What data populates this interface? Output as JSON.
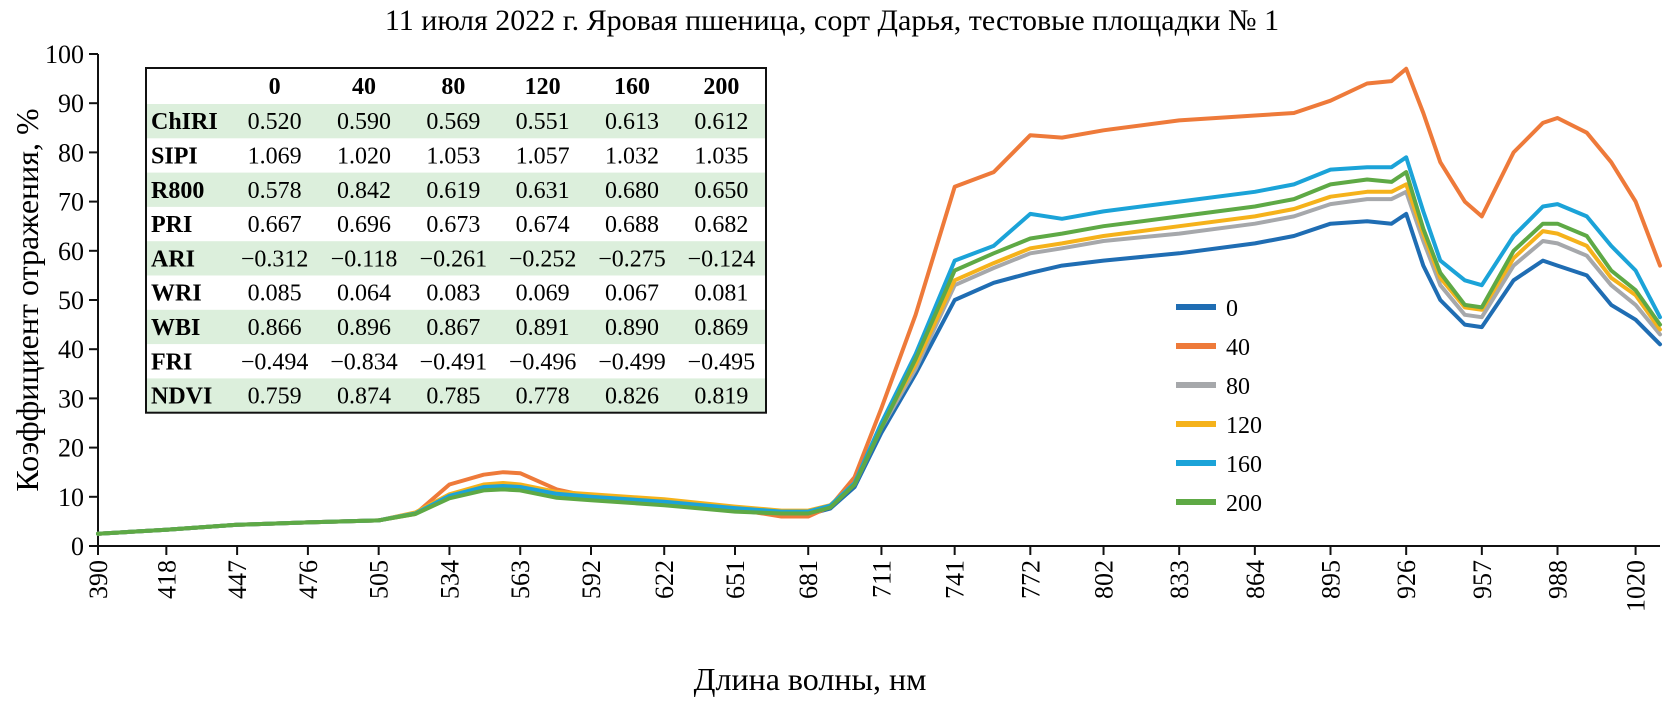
{
  "chart_data": {
    "type": "line",
    "title": "11 июля 2022 г. Яровая пшеница, сорт Дарья, тестовые площадки № 1",
    "xlabel": "Длина волны, нм",
    "ylabel": "Коэффициент отражения, %",
    "xlim": [
      390,
      1030
    ],
    "ylim": [
      0,
      100
    ],
    "yticks": [
      0,
      10,
      20,
      30,
      40,
      50,
      60,
      70,
      80,
      90,
      100
    ],
    "xticks": [
      390,
      418,
      447,
      476,
      505,
      534,
      563,
      592,
      622,
      651,
      681,
      711,
      741,
      772,
      802,
      833,
      864,
      895,
      926,
      957,
      988,
      1020
    ],
    "grid": false,
    "legend_position": "right",
    "x": [
      390,
      418,
      447,
      476,
      505,
      520,
      534,
      548,
      556,
      563,
      578,
      592,
      622,
      651,
      670,
      681,
      690,
      700,
      711,
      725,
      741,
      757,
      772,
      785,
      802,
      833,
      864,
      880,
      895,
      910,
      920,
      926,
      933,
      940,
      950,
      957,
      970,
      982,
      988,
      1000,
      1010,
      1020,
      1030
    ],
    "series": [
      {
        "name": "0",
        "color": "#1f6db3",
        "values": [
          2.5,
          3.3,
          4.3,
          4.8,
          5.2,
          6.7,
          9.8,
          11.4,
          11.6,
          11.4,
          10.0,
          9.5,
          8.4,
          7.2,
          6.4,
          6.4,
          7.6,
          12.0,
          23.0,
          35.0,
          50.0,
          53.5,
          55.5,
          57.0,
          58.0,
          59.5,
          61.5,
          63.0,
          65.5,
          66.0,
          65.5,
          67.5,
          57.0,
          50.0,
          45.0,
          44.5,
          54.0,
          58.0,
          57.0,
          55.0,
          49.0,
          46.0,
          41.0
        ]
      },
      {
        "name": "40",
        "color": "#ee7a3a",
        "values": [
          2.5,
          3.3,
          4.3,
          4.8,
          5.2,
          6.5,
          12.5,
          14.5,
          15.0,
          14.8,
          11.5,
          10.0,
          9.0,
          7.5,
          6.0,
          6.0,
          8.0,
          14.0,
          28.0,
          47.0,
          73.0,
          76.0,
          83.5,
          83.0,
          84.5,
          86.5,
          87.5,
          88.0,
          90.5,
          94.0,
          94.5,
          97.0,
          88.0,
          78.0,
          70.0,
          67.0,
          80.0,
          86.0,
          87.0,
          84.0,
          78.0,
          70.0,
          57.0
        ]
      },
      {
        "name": "80",
        "color": "#a6a8ab",
        "values": [
          2.5,
          3.3,
          4.3,
          4.8,
          5.2,
          6.7,
          10.0,
          11.8,
          12.0,
          11.8,
          10.3,
          9.8,
          8.8,
          7.5,
          6.8,
          6.8,
          8.0,
          12.5,
          24.0,
          36.0,
          53.0,
          56.5,
          59.5,
          60.5,
          62.0,
          63.5,
          65.5,
          67.0,
          69.5,
          70.5,
          70.5,
          72.0,
          62.0,
          53.0,
          47.0,
          46.5,
          57.0,
          62.0,
          61.5,
          59.0,
          53.0,
          49.0,
          43.0
        ]
      },
      {
        "name": "120",
        "color": "#f5b21b",
        "values": [
          2.5,
          3.3,
          4.3,
          4.8,
          5.2,
          6.8,
          10.5,
          12.5,
          12.8,
          12.5,
          11.0,
          10.5,
          9.5,
          8.0,
          7.2,
          7.2,
          8.3,
          12.8,
          24.5,
          37.0,
          54.0,
          57.5,
          60.5,
          61.5,
          63.0,
          65.0,
          67.0,
          68.5,
          71.0,
          72.0,
          72.0,
          73.5,
          63.5,
          54.5,
          48.5,
          48.0,
          58.5,
          64.0,
          63.5,
          61.0,
          54.5,
          51.0,
          44.0
        ]
      },
      {
        "name": "160",
        "color": "#1ba3d8",
        "values": [
          2.5,
          3.3,
          4.3,
          4.8,
          5.2,
          6.6,
          10.2,
          12.0,
          12.2,
          12.0,
          10.6,
          10.0,
          9.0,
          7.7,
          7.0,
          7.0,
          8.2,
          12.8,
          25.0,
          39.0,
          58.0,
          61.0,
          67.5,
          66.5,
          68.0,
          70.0,
          72.0,
          73.5,
          76.5,
          77.0,
          77.0,
          79.0,
          68.0,
          58.0,
          54.0,
          53.0,
          63.0,
          69.0,
          69.5,
          67.0,
          61.0,
          56.0,
          46.5
        ]
      },
      {
        "name": "200",
        "color": "#5ea945",
        "values": [
          2.5,
          3.3,
          4.3,
          4.8,
          5.2,
          6.5,
          9.7,
          11.3,
          11.5,
          11.3,
          9.8,
          9.3,
          8.3,
          7.0,
          6.6,
          6.6,
          7.8,
          12.5,
          24.0,
          38.0,
          56.0,
          59.5,
          62.5,
          63.5,
          65.0,
          67.0,
          69.0,
          70.5,
          73.5,
          74.5,
          74.0,
          76.0,
          64.5,
          55.5,
          49.0,
          48.5,
          60.0,
          65.5,
          65.5,
          63.0,
          56.0,
          52.0,
          45.0
        ]
      }
    ],
    "table": {
      "columns": [
        "0",
        "40",
        "80",
        "120",
        "160",
        "200"
      ],
      "rows": [
        {
          "label": "ChIRI",
          "values": [
            "0.520",
            "0.590",
            "0.569",
            "0.551",
            "0.613",
            "0.612"
          ]
        },
        {
          "label": "SIPI",
          "values": [
            "1.069",
            "1.020",
            "1.053",
            "1.057",
            "1.032",
            "1.035"
          ]
        },
        {
          "label": "R800",
          "values": [
            "0.578",
            "0.842",
            "0.619",
            "0.631",
            "0.680",
            "0.650"
          ]
        },
        {
          "label": "PRI",
          "values": [
            "0.667",
            "0.696",
            "0.673",
            "0.674",
            "0.688",
            "0.682"
          ]
        },
        {
          "label": "ARI",
          "values": [
            "−0.312",
            "−0.118",
            "−0.261",
            "−0.252",
            "−0.275",
            "−0.124"
          ]
        },
        {
          "label": "WRI",
          "values": [
            "0.085",
            "0.064",
            "0.083",
            "0.069",
            "0.067",
            "0.081"
          ]
        },
        {
          "label": "WBI",
          "values": [
            "0.866",
            "0.896",
            "0.867",
            "0.891",
            "0.890",
            "0.869"
          ]
        },
        {
          "label": "FRI",
          "values": [
            "−0.494",
            "−0.834",
            "−0.491",
            "−0.496",
            "−0.499",
            "−0.495"
          ]
        },
        {
          "label": "NDVI",
          "values": [
            "0.759",
            "0.874",
            "0.785",
            "0.778",
            "0.826",
            "0.819"
          ]
        }
      ],
      "stripe_color": "#dcefdc"
    }
  }
}
